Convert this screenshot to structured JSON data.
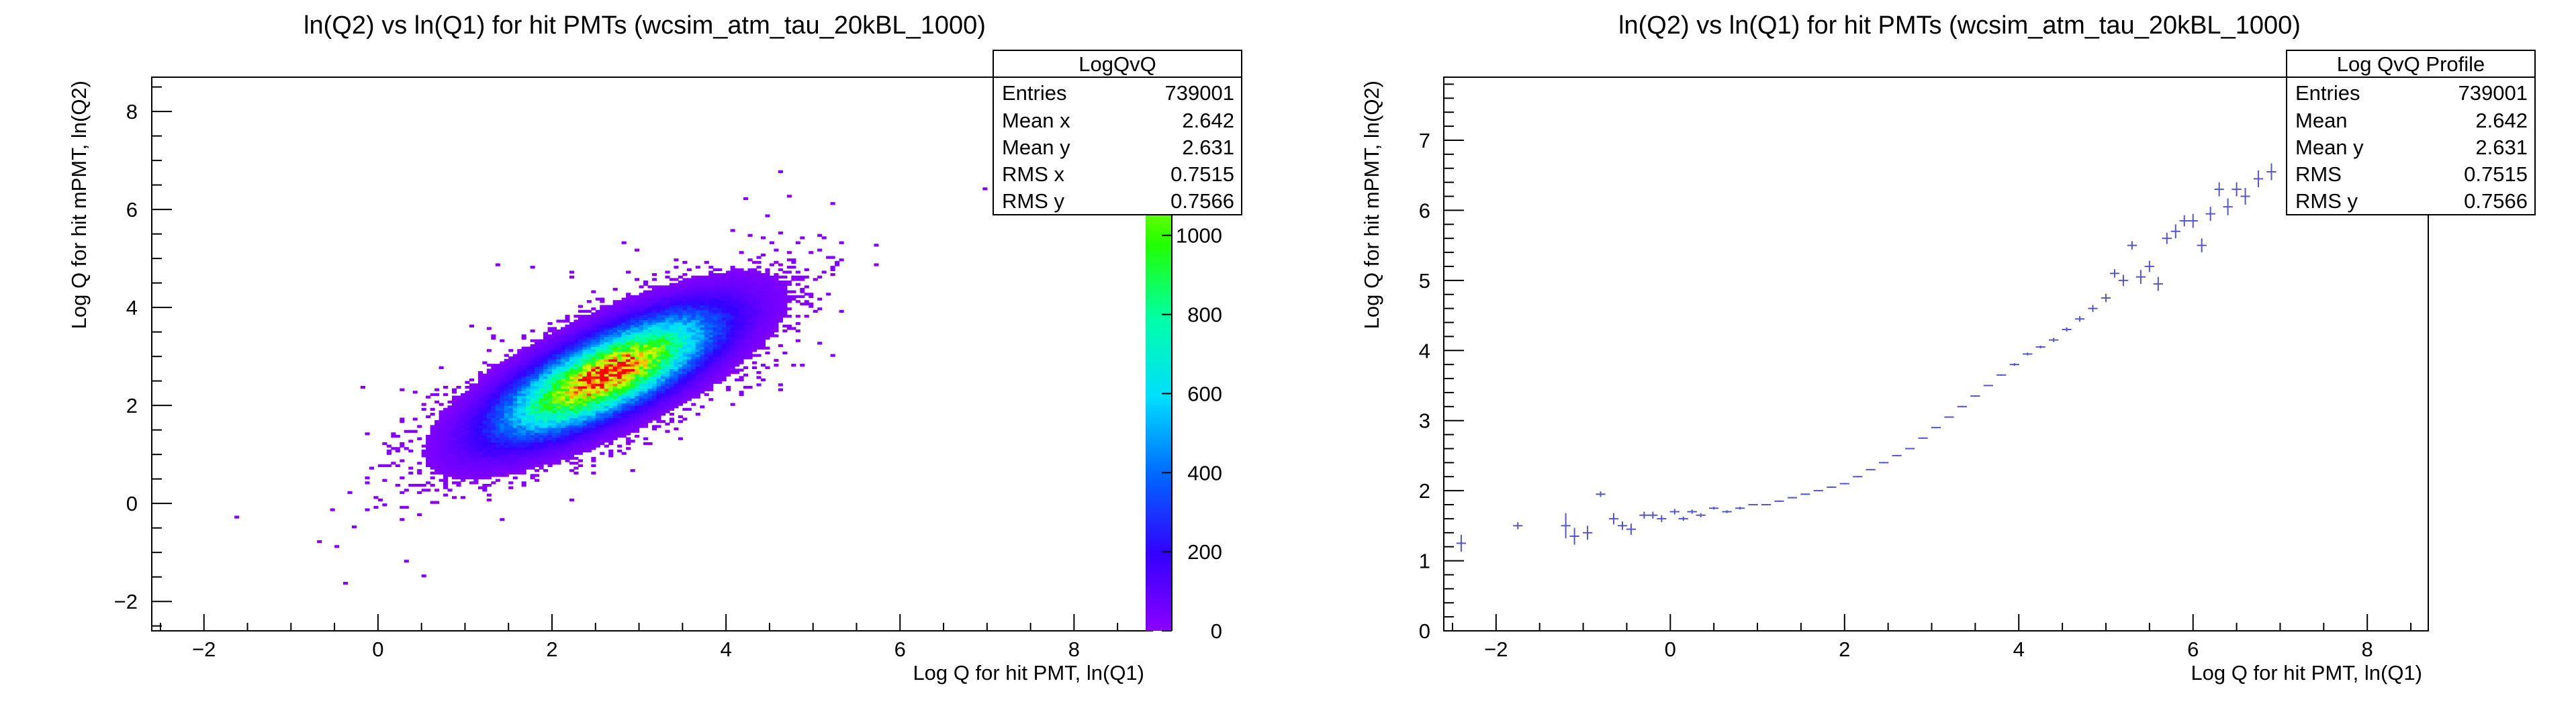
{
  "left_panel": {
    "title": "ln(Q2) vs ln(Q1) for hit PMTs (wcsim_atm_tau_20kBL_1000)",
    "xlabel": "Log Q for hit PMT, ln(Q1)",
    "ylabel": "Log Q for hit mPMT, ln(Q2)",
    "stats": {
      "title": "LogQvQ",
      "rows": [
        {
          "label": "Entries",
          "value": "739001"
        },
        {
          "label": "Mean x",
          "value": "2.642"
        },
        {
          "label": "Mean y",
          "value": "2.631"
        },
        {
          "label": "RMS x",
          "value": "0.7515"
        },
        {
          "label": "RMS y",
          "value": "0.7566"
        }
      ]
    }
  },
  "right_panel": {
    "title": "ln(Q2) vs ln(Q1) for hit PMTs (wcsim_atm_tau_20kBL_1000)",
    "xlabel": "Log Q for hit PMT, ln(Q1)",
    "ylabel": "Log Q for hit mPMT, ln(Q2)",
    "stats": {
      "title": "Log QvQ Profile",
      "rows": [
        {
          "label": "Entries",
          "value": "739001"
        },
        {
          "label": "Mean",
          "value": "2.642"
        },
        {
          "label": "Mean y",
          "value": "2.631"
        },
        {
          "label": "RMS",
          "value": "0.7515"
        },
        {
          "label": "RMS y",
          "value": "0.7566"
        }
      ]
    }
  },
  "chart_data": [
    {
      "type": "heatmap",
      "title": "ln(Q2) vs ln(Q1) for hit PMTs (wcsim_atm_tau_20kBL_1000)",
      "xlabel": "Log Q for hit PMT, ln(Q1)",
      "ylabel": "Log Q for hit mPMT, ln(Q2)",
      "xlim": [
        -2.6,
        8.9
      ],
      "ylim": [
        -2.6,
        8.7
      ],
      "xticks": [
        -2,
        0,
        2,
        4,
        6,
        8
      ],
      "yticks": [
        -2,
        0,
        2,
        4,
        6,
        8
      ],
      "zlim": [
        0,
        1400
      ],
      "zticks": [
        0,
        200,
        400,
        600,
        800,
        1000,
        1200
      ],
      "zticks_hidden_behind_stats": [
        1400,
        1600
      ],
      "colors": [
        "#8b00ff",
        "#0000ff",
        "#00aaff",
        "#00ffcc",
        "#00ff00",
        "#ccff00",
        "#ffaa00",
        "#ff0000"
      ],
      "density_model": {
        "peak": [
          2.6,
          2.6
        ],
        "peak_count": 1400,
        "entries": 739001,
        "mean_x": 2.642,
        "mean_y": 2.631,
        "rms_x": 0.7515,
        "rms_y": 0.7566,
        "correlation": 0.75
      },
      "grid": false
    },
    {
      "type": "scatter",
      "title": "ln(Q2) vs ln(Q1) for hit PMTs (wcsim_atm_tau_20kBL_1000)",
      "xlabel": "Log Q for hit PMT, ln(Q1)",
      "ylabel": "Log Q for hit mPMT, ln(Q2)",
      "xlim": [
        -2.6,
        8.7
      ],
      "ylim": [
        0,
        7.9
      ],
      "xticks": [
        -2,
        0,
        2,
        4,
        6,
        8
      ],
      "yticks": [
        0,
        1,
        2,
        3,
        4,
        5,
        6,
        7
      ],
      "marker_color": "#5555cc",
      "x": [
        -2.4,
        -1.75,
        -1.2,
        -1.1,
        -0.95,
        -0.8,
        -0.65,
        -0.55,
        -0.45,
        -0.3,
        -0.2,
        -0.1,
        0.05,
        0.15,
        0.25,
        0.35,
        0.5,
        0.65,
        0.8,
        0.95,
        1.1,
        1.25,
        1.4,
        1.55,
        1.7,
        1.85,
        2.0,
        2.15,
        2.3,
        2.45,
        2.6,
        2.75,
        2.9,
        3.05,
        3.2,
        3.35,
        3.5,
        3.65,
        3.8,
        3.95,
        4.1,
        4.25,
        4.4,
        4.55,
        4.7,
        4.85,
        5.0,
        5.1,
        5.2,
        5.3,
        5.4,
        5.5,
        5.6,
        5.7,
        5.8,
        5.9,
        6.0,
        6.1,
        6.2,
        6.3,
        6.4,
        6.5,
        6.6,
        6.75,
        6.9
      ],
      "y": [
        1.25,
        1.5,
        1.5,
        1.35,
        1.4,
        1.95,
        1.6,
        1.5,
        1.45,
        1.65,
        1.65,
        1.6,
        1.7,
        1.6,
        1.7,
        1.65,
        1.75,
        1.7,
        1.75,
        1.8,
        1.8,
        1.85,
        1.9,
        1.95,
        2.0,
        2.05,
        2.1,
        2.2,
        2.3,
        2.4,
        2.5,
        2.6,
        2.75,
        2.9,
        3.05,
        3.2,
        3.35,
        3.5,
        3.65,
        3.8,
        3.95,
        4.05,
        4.15,
        4.3,
        4.45,
        4.6,
        4.75,
        5.1,
        5.0,
        5.5,
        5.05,
        5.2,
        4.95,
        5.6,
        5.7,
        5.85,
        5.85,
        5.5,
        5.95,
        6.3,
        6.05,
        6.3,
        6.2,
        6.45,
        6.55
      ],
      "yerr": [
        0.12,
        0.05,
        0.18,
        0.12,
        0.1,
        0.04,
        0.08,
        0.06,
        0.08,
        0.05,
        0.05,
        0.05,
        0.04,
        0.03,
        0.03,
        0.03,
        0.02,
        0.02,
        0.02,
        0.01,
        0.01,
        0.01,
        0.01,
        0.01,
        0.01,
        0.01,
        0.01,
        0.01,
        0.01,
        0.01,
        0.01,
        0.01,
        0.01,
        0.01,
        0.01,
        0.01,
        0.01,
        0.01,
        0.01,
        0.02,
        0.02,
        0.02,
        0.03,
        0.03,
        0.04,
        0.05,
        0.06,
        0.06,
        0.08,
        0.06,
        0.1,
        0.08,
        0.1,
        0.08,
        0.1,
        0.08,
        0.1,
        0.1,
        0.1,
        0.1,
        0.12,
        0.1,
        0.12,
        0.12,
        0.12
      ],
      "xerr": 0.055,
      "grid": false
    }
  ]
}
